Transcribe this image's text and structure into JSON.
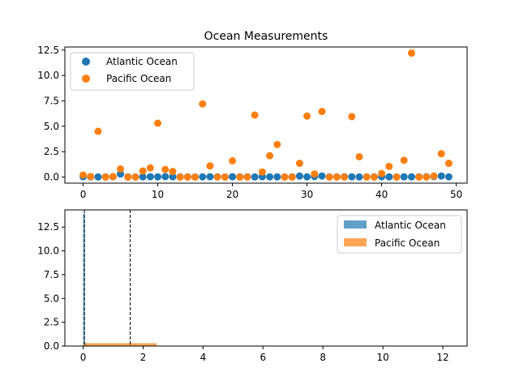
{
  "chart_data": [
    {
      "type": "scatter",
      "title": "Ocean Measurements",
      "xlabel": "",
      "ylabel": "",
      "xlim": [
        -2.45,
        51.45
      ],
      "ylim": [
        -0.6,
        12.8
      ],
      "xticks": [
        0,
        10,
        20,
        30,
        40,
        50
      ],
      "yticks": [
        0.0,
        2.5,
        5.0,
        7.5,
        10.0,
        12.5
      ],
      "xtick_labels": [
        "0",
        "10",
        "20",
        "30",
        "40",
        "50"
      ],
      "ytick_labels": [
        "0.0",
        "2.5",
        "5.0",
        "7.5",
        "10.0",
        "12.5"
      ],
      "grid": false,
      "legend_position": "top-left",
      "series": [
        {
          "name": "Atlantic Ocean",
          "color": "#1f77b4",
          "x": [
            0,
            1,
            2,
            3,
            4,
            5,
            6,
            7,
            8,
            9,
            10,
            11,
            12,
            13,
            14,
            15,
            16,
            17,
            18,
            19,
            20,
            21,
            22,
            23,
            24,
            25,
            26,
            27,
            28,
            29,
            30,
            31,
            32,
            33,
            34,
            35,
            36,
            37,
            38,
            39,
            40,
            41,
            42,
            43,
            44,
            45,
            46,
            47,
            48,
            49
          ],
          "y": [
            0.03,
            0.02,
            0.01,
            0.02,
            0.03,
            0.3,
            0.02,
            0.01,
            0.02,
            0.03,
            0.02,
            0.04,
            0.03,
            0.02,
            0.02,
            0.01,
            0.02,
            0.03,
            0.02,
            0.01,
            0.03,
            0.02,
            0.02,
            0.01,
            0.03,
            0.02,
            0.02,
            0.01,
            0.02,
            0.1,
            0.02,
            0.05,
            0.1,
            0.02,
            0.02,
            0.03,
            0.02,
            0.01,
            0.02,
            0.02,
            0.03,
            0.02,
            0.01,
            0.02,
            0.02,
            0.02,
            0.03,
            0.05,
            0.1,
            0.02
          ]
        },
        {
          "name": "Pacific Ocean",
          "color": "#ff7f0e",
          "x": [
            0,
            1,
            2,
            3,
            4,
            5,
            6,
            7,
            8,
            9,
            10,
            11,
            12,
            13,
            14,
            15,
            16,
            17,
            18,
            19,
            20,
            21,
            22,
            23,
            24,
            25,
            26,
            27,
            28,
            29,
            30,
            31,
            32,
            33,
            34,
            35,
            36,
            37,
            38,
            39,
            40,
            41,
            42,
            43,
            44,
            45,
            46,
            47,
            48,
            49
          ],
          "y": [
            0.2,
            0.05,
            4.5,
            0.0,
            0.05,
            0.8,
            0.0,
            0.0,
            0.6,
            0.9,
            5.3,
            0.75,
            0.55,
            0.0,
            0.0,
            0.0,
            7.2,
            1.1,
            0.0,
            0.0,
            1.6,
            0.0,
            0.0,
            6.1,
            0.5,
            2.1,
            3.2,
            0.0,
            0.0,
            1.35,
            6.0,
            0.3,
            6.45,
            0.0,
            0.0,
            0.0,
            5.95,
            2.0,
            0.0,
            0.0,
            0.35,
            1.05,
            0.0,
            1.65,
            12.2,
            0.0,
            0.0,
            0.1,
            2.3,
            1.35
          ]
        }
      ]
    },
    {
      "type": "histogram",
      "title": "",
      "xlabel": "",
      "ylabel": "",
      "xlim": [
        -0.61,
        12.81
      ],
      "ylim": [
        0,
        14.3
      ],
      "xticks": [
        0,
        2,
        4,
        6,
        8,
        10,
        12
      ],
      "yticks": [
        0.0,
        2.5,
        5.0,
        7.5,
        10.0,
        12.5
      ],
      "xtick_labels": [
        "0",
        "2",
        "4",
        "6",
        "8",
        "10",
        "12"
      ],
      "ytick_labels": [
        "0.0",
        "2.5",
        "5.0",
        "7.5",
        "10.0",
        "12.5"
      ],
      "grid": false,
      "legend_position": "top-right",
      "series": [
        {
          "name": "Atlantic Ocean",
          "color": "#1f77b4",
          "bins": [
            [
              0.0,
              0.06,
              13.9
            ],
            [
              0.06,
              0.12,
              0.3
            ]
          ]
        },
        {
          "name": "Pacific Ocean",
          "color": "#ff7f0e",
          "bins": [
            [
              0.0,
              2.45,
              0.3
            ]
          ]
        }
      ],
      "vlines": [
        {
          "x": 0.04,
          "color": "#000000",
          "style": "dashed"
        },
        {
          "x": 1.57,
          "color": "#000000",
          "style": "dashed"
        }
      ]
    }
  ]
}
